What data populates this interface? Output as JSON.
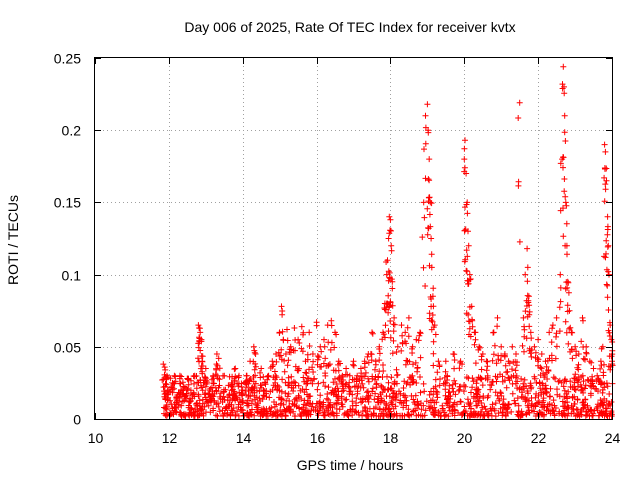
{
  "chart_data": {
    "type": "scatter",
    "title": "Day 006 of 2025, Rate Of TEC Index for receiver kvtx",
    "xlabel": "GPS time / hours",
    "ylabel": "ROTI / TECUs",
    "xlim": [
      10,
      24
    ],
    "ylim": [
      0,
      0.25
    ],
    "xticks": [
      10,
      12,
      14,
      16,
      18,
      20,
      22,
      24
    ],
    "yticks": [
      0,
      0.05,
      0.1,
      0.15,
      0.2,
      0.25
    ],
    "xtick_labels": [
      "10",
      "12",
      "14",
      "16",
      "18",
      "20",
      "22",
      "24"
    ],
    "ytick_labels": [
      "0",
      "0.05",
      "0.1",
      "0.15",
      "0.2",
      "0.25"
    ],
    "grid": true,
    "marker": "+",
    "colors": {
      "series": "#ff0000",
      "grid": "#a0a0a0",
      "axis": "#000000"
    },
    "series": [
      {
        "name": "ROTI",
        "points": [
          [
            11.85,
            0.038
          ],
          [
            11.9,
            0.034
          ],
          [
            11.95,
            0.03
          ],
          [
            12.0,
            0.02
          ],
          [
            12.1,
            0.025
          ],
          [
            12.2,
            0.015
          ],
          [
            12.3,
            0.03
          ],
          [
            12.4,
            0.02
          ],
          [
            12.5,
            0.028
          ],
          [
            12.6,
            0.018
          ],
          [
            12.7,
            0.03
          ],
          [
            12.8,
            0.065
          ],
          [
            12.82,
            0.063
          ],
          [
            12.85,
            0.06
          ],
          [
            12.88,
            0.055
          ],
          [
            12.9,
            0.04
          ],
          [
            13.0,
            0.035
          ],
          [
            13.1,
            0.02
          ],
          [
            13.2,
            0.03
          ],
          [
            13.3,
            0.045
          ],
          [
            13.35,
            0.042
          ],
          [
            13.5,
            0.03
          ],
          [
            13.6,
            0.015
          ],
          [
            13.7,
            0.025
          ],
          [
            13.8,
            0.035
          ],
          [
            13.9,
            0.03
          ],
          [
            14.0,
            0.02
          ],
          [
            14.1,
            0.03
          ],
          [
            14.2,
            0.04
          ],
          [
            14.3,
            0.05
          ],
          [
            14.35,
            0.045
          ],
          [
            14.5,
            0.035
          ],
          [
            14.6,
            0.025
          ],
          [
            14.7,
            0.03
          ],
          [
            14.8,
            0.04
          ],
          [
            14.9,
            0.045
          ],
          [
            15.0,
            0.06
          ],
          [
            15.05,
            0.078
          ],
          [
            15.1,
            0.055
          ],
          [
            15.2,
            0.062
          ],
          [
            15.3,
            0.05
          ],
          [
            15.4,
            0.063
          ],
          [
            15.5,
            0.055
          ],
          [
            15.6,
            0.064
          ],
          [
            15.7,
            0.04
          ],
          [
            15.8,
            0.06
          ],
          [
            15.9,
            0.045
          ],
          [
            16.0,
            0.067
          ],
          [
            16.1,
            0.05
          ],
          [
            16.2,
            0.055
          ],
          [
            16.3,
            0.065
          ],
          [
            16.4,
            0.068
          ],
          [
            16.5,
            0.06
          ],
          [
            16.6,
            0.04
          ],
          [
            16.7,
            0.03
          ],
          [
            16.8,
            0.035
          ],
          [
            16.9,
            0.03
          ],
          [
            17.0,
            0.04
          ],
          [
            17.1,
            0.03
          ],
          [
            17.2,
            0.035
          ],
          [
            17.3,
            0.04
          ],
          [
            17.4,
            0.045
          ],
          [
            17.5,
            0.06
          ],
          [
            17.6,
            0.04
          ],
          [
            17.7,
            0.05
          ],
          [
            17.8,
            0.06
          ],
          [
            17.85,
            0.08
          ],
          [
            17.9,
            0.1
          ],
          [
            17.92,
            0.11
          ],
          [
            17.95,
            0.125
          ],
          [
            17.97,
            0.14
          ],
          [
            18.0,
            0.138
          ],
          [
            18.02,
            0.12
          ],
          [
            18.05,
            0.095
          ],
          [
            18.1,
            0.07
          ],
          [
            18.2,
            0.05
          ],
          [
            18.3,
            0.065
          ],
          [
            18.4,
            0.06
          ],
          [
            18.5,
            0.07
          ],
          [
            18.6,
            0.05
          ],
          [
            18.7,
            0.055
          ],
          [
            18.8,
            0.06
          ],
          [
            18.9,
            0.15
          ],
          [
            18.95,
            0.21
          ],
          [
            19.0,
            0.218
          ],
          [
            19.02,
            0.2
          ],
          [
            19.05,
            0.18
          ],
          [
            19.08,
            0.15
          ],
          [
            19.1,
            0.125
          ],
          [
            19.12,
            0.105
          ],
          [
            19.15,
            0.085
          ],
          [
            19.2,
            0.065
          ],
          [
            19.3,
            0.04
          ],
          [
            19.5,
            0.04
          ],
          [
            19.7,
            0.045
          ],
          [
            19.9,
            0.04
          ],
          [
            20.0,
            0.18
          ],
          [
            20.02,
            0.193
          ],
          [
            20.05,
            0.17
          ],
          [
            20.08,
            0.15
          ],
          [
            20.1,
            0.13
          ],
          [
            20.12,
            0.12
          ],
          [
            20.15,
            0.1
          ],
          [
            20.2,
            0.078
          ],
          [
            20.3,
            0.06
          ],
          [
            20.4,
            0.05
          ],
          [
            20.5,
            0.045
          ],
          [
            20.6,
            0.04
          ],
          [
            20.8,
            0.06
          ],
          [
            20.9,
            0.07
          ],
          [
            21.0,
            0.05
          ],
          [
            21.1,
            0.045
          ],
          [
            21.2,
            0.04
          ],
          [
            21.3,
            0.05
          ],
          [
            21.4,
            0.045
          ],
          [
            21.5,
            0.219
          ],
          [
            21.6,
            0.07
          ],
          [
            21.65,
            0.1
          ],
          [
            21.7,
            0.118
          ],
          [
            21.72,
            0.105
          ],
          [
            21.75,
            0.085
          ],
          [
            21.8,
            0.06
          ],
          [
            21.9,
            0.05
          ],
          [
            22.0,
            0.055
          ],
          [
            22.1,
            0.045
          ],
          [
            22.2,
            0.04
          ],
          [
            22.3,
            0.06
          ],
          [
            22.4,
            0.065
          ],
          [
            22.5,
            0.07
          ],
          [
            22.6,
            0.1
          ],
          [
            22.65,
            0.18
          ],
          [
            22.68,
            0.244
          ],
          [
            22.7,
            0.23
          ],
          [
            22.72,
            0.21
          ],
          [
            22.75,
            0.15
          ],
          [
            22.78,
            0.12
          ],
          [
            22.8,
            0.095
          ],
          [
            22.85,
            0.075
          ],
          [
            22.9,
            0.06
          ],
          [
            23.0,
            0.05
          ],
          [
            23.1,
            0.045
          ],
          [
            23.2,
            0.07
          ],
          [
            23.3,
            0.05
          ],
          [
            23.4,
            0.04
          ],
          [
            23.5,
            0.035
          ],
          [
            23.6,
            0.03
          ],
          [
            23.7,
            0.04
          ],
          [
            23.75,
            0.05
          ],
          [
            23.8,
            0.19
          ],
          [
            23.82,
            0.185
          ],
          [
            23.85,
            0.165
          ],
          [
            23.88,
            0.14
          ],
          [
            23.9,
            0.12
          ],
          [
            23.92,
            0.1
          ],
          [
            23.95,
            0.065
          ],
          [
            23.98,
            0.055
          ],
          [
            24.0,
            0.04
          ]
        ]
      }
    ],
    "baseline_noise": {
      "x_start": 11.85,
      "x_end": 24.0,
      "y_min": 0.002,
      "y_max": 0.03
    }
  }
}
